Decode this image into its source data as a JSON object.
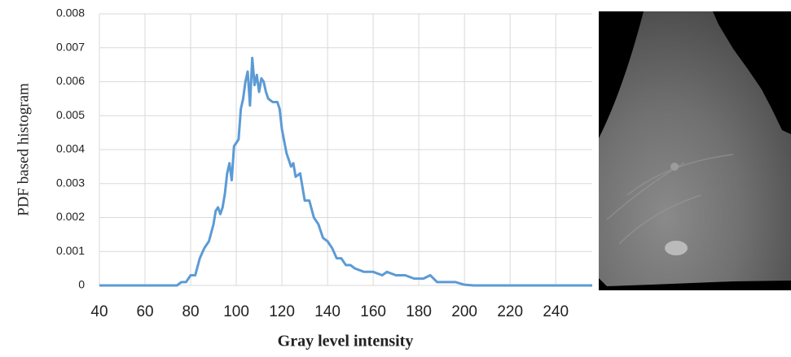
{
  "chart_data": {
    "type": "line",
    "ylabel": "PDF based histogram",
    "xlabel": "Gray level intensity",
    "color": "#5b9bd5",
    "grid": true,
    "xlim": [
      40,
      256
    ],
    "ylim": [
      0,
      0.008
    ],
    "xticks": [
      40,
      60,
      80,
      100,
      120,
      140,
      160,
      180,
      200,
      220,
      240
    ],
    "yticks": [
      0,
      0.001,
      0.002,
      0.003,
      0.004,
      0.005,
      0.006,
      0.007,
      0.008
    ],
    "x": [
      40,
      74,
      76,
      78,
      80,
      82,
      84,
      86,
      88,
      90,
      91,
      92,
      93,
      94,
      95,
      96,
      97,
      98,
      99,
      100,
      101,
      102,
      103,
      104,
      105,
      106,
      107,
      108,
      109,
      110,
      111,
      112,
      113,
      114,
      116,
      118,
      119,
      120,
      122,
      124,
      125,
      126,
      128,
      130,
      132,
      134,
      136,
      138,
      140,
      142,
      144,
      146,
      148,
      150,
      152,
      156,
      160,
      164,
      166,
      170,
      174,
      178,
      182,
      185,
      188,
      192,
      196,
      200,
      204,
      256
    ],
    "values": [
      0,
      0,
      0.0001,
      0.0001,
      0.0003,
      0.0003,
      0.0008,
      0.0011,
      0.0013,
      0.0018,
      0.0022,
      0.0023,
      0.0021,
      0.0023,
      0.0027,
      0.0033,
      0.0036,
      0.0031,
      0.0041,
      0.0042,
      0.0043,
      0.0052,
      0.0055,
      0.006,
      0.0063,
      0.0053,
      0.0067,
      0.0059,
      0.0062,
      0.0057,
      0.0061,
      0.006,
      0.0057,
      0.0055,
      0.0054,
      0.0054,
      0.0052,
      0.0046,
      0.0039,
      0.0035,
      0.0036,
      0.0032,
      0.0033,
      0.0025,
      0.0025,
      0.002,
      0.0018,
      0.0014,
      0.0013,
      0.0011,
      0.0008,
      0.0008,
      0.0006,
      0.0006,
      0.0005,
      0.0004,
      0.0004,
      0.0003,
      0.0004,
      0.0003,
      0.0003,
      0.0002,
      0.0002,
      0.0003,
      0.0001,
      0.0001,
      0.0001,
      2e-05,
      0,
      0
    ]
  }
}
